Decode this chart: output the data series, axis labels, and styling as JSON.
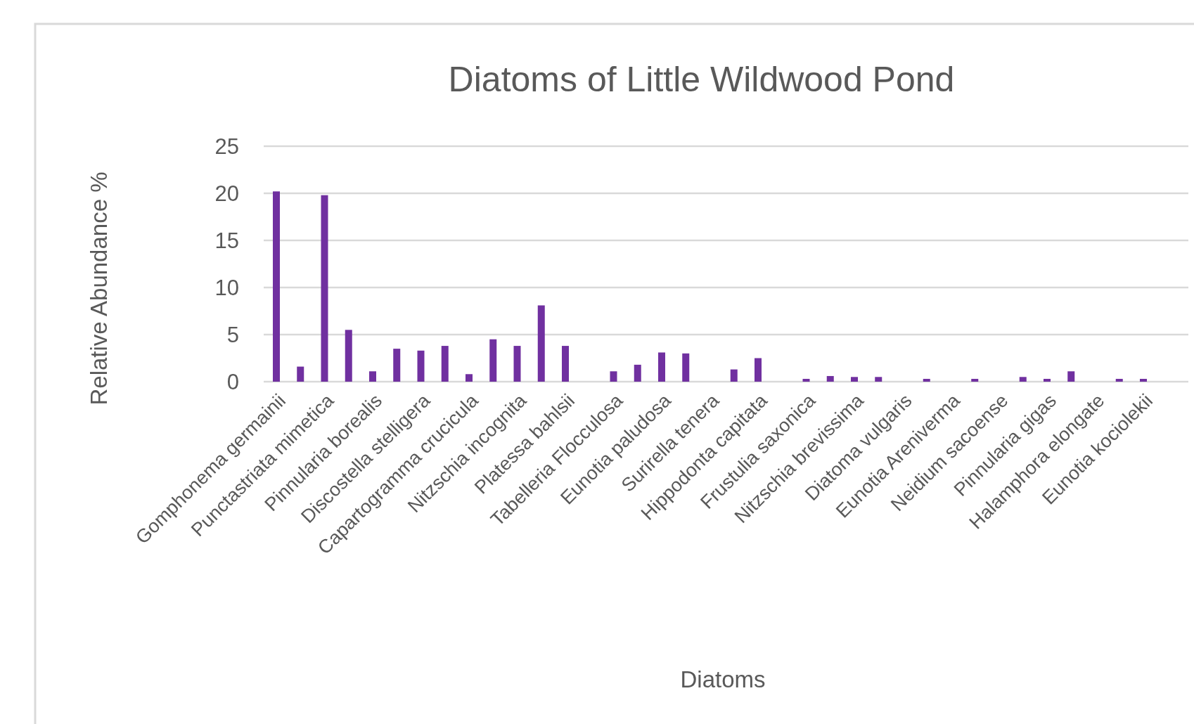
{
  "chart_data": {
    "type": "bar",
    "title": "Diatoms of Little Wildwood Pond",
    "xlabel": "Diatoms",
    "ylabel": "Relative Abundance %",
    "categories": [
      "Gomphonema germainii",
      null,
      "Punctastriata mimetica",
      null,
      "Pinnularia borealis",
      null,
      "Discostella stelligera",
      null,
      "Capartogramma crucicula",
      null,
      "Nitzschia incognita",
      null,
      "Platessa bahlsii",
      null,
      "Tabelleria Flocculosa",
      null,
      "Eunotia paludosa",
      null,
      "Surirella tenera",
      null,
      "Hippodonta capitata",
      null,
      "Frustulia saxonica",
      null,
      "Nitzschia brevissima",
      null,
      "Diatoma vulgaris",
      null,
      "Eunotia Areniverma",
      null,
      "Neidium sacoense",
      null,
      "Pinnularia gigas",
      null,
      "Halamphora elongate",
      null,
      "Eunotia kociolekii"
    ],
    "values": [
      20.2,
      1.6,
      19.8,
      5.5,
      1.1,
      3.5,
      3.3,
      3.8,
      0.8,
      4.5,
      3.8,
      8.1,
      3.8,
      null,
      1.1,
      1.8,
      3.1,
      3.0,
      null,
      1.3,
      2.5,
      null,
      0.3,
      0.6,
      0.5,
      0.5,
      null,
      0.3,
      null,
      0.3,
      null,
      0.5,
      0.3,
      1.1,
      null,
      0.3,
      0.3
    ],
    "color": "#7030a0",
    "ylim": [
      0,
      25
    ],
    "yticks": [
      0,
      5,
      10,
      15,
      20,
      25
    ],
    "grid": "y"
  }
}
